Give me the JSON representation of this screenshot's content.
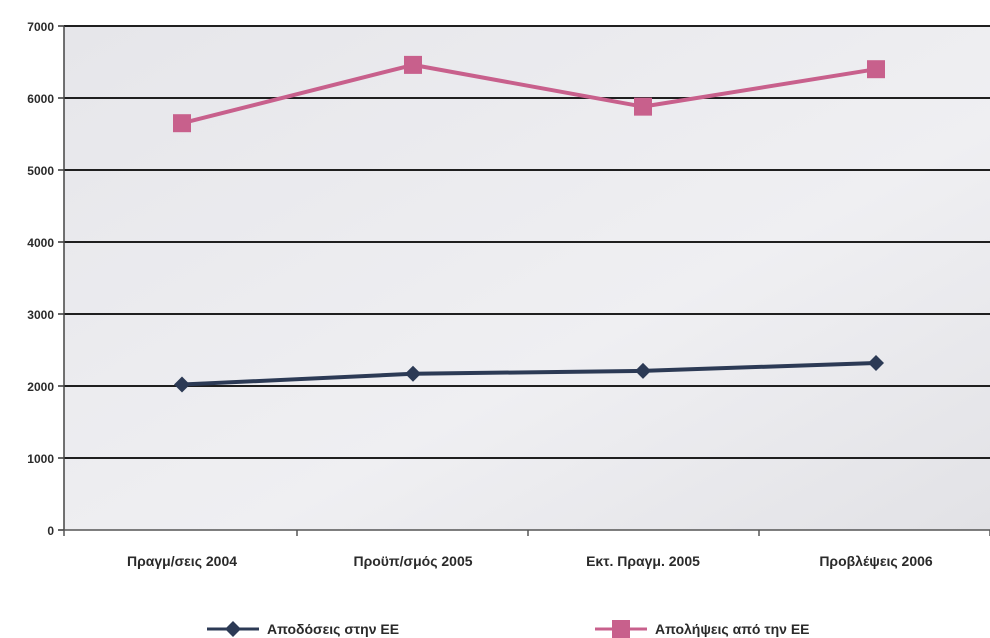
{
  "chart_data": {
    "type": "line",
    "title": "",
    "xlabel": "",
    "ylabel": "",
    "categories": [
      "Πραγμ/σεις 2004",
      "Προϋπ/σμός 2005",
      "Εκτ. Πραγμ. 2005",
      "Προβλέψεις 2006"
    ],
    "ylim": [
      0,
      7000
    ],
    "yticks": [
      0,
      1000,
      2000,
      3000,
      4000,
      5000,
      6000,
      7000
    ],
    "grid": true,
    "legend_position": "bottom",
    "series": [
      {
        "name": "Αποδόσεις στην ΕΕ",
        "values": [
          2020,
          2170,
          2210,
          2320
        ],
        "color": "#2c3a55",
        "marker": "diamond"
      },
      {
        "name": "Απολήψεις από την ΕΕ",
        "values": [
          5650,
          6460,
          5880,
          6400
        ],
        "color": "#c8608c",
        "marker": "square"
      }
    ],
    "plot_background": "#ececef",
    "gridline_color": "#1f1f1f"
  }
}
